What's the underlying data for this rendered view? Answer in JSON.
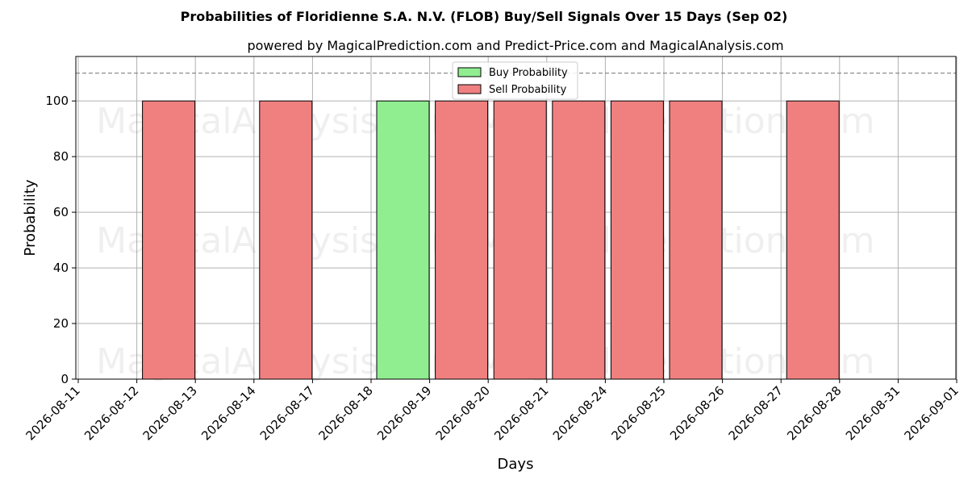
{
  "chart_data": {
    "type": "bar",
    "title": "Probabilities of Floridienne S.A. N.V. (FLOB) Buy/Sell Signals Over 15 Days (Sep 02)",
    "subtitle": "powered by MagicalPrediction.com and Predict-Price.com and MagicalAnalysis.com",
    "xlabel": "Days",
    "ylabel": "Probability",
    "categories": [
      "2026-08-11",
      "2026-08-12",
      "2026-08-13",
      "2026-08-14",
      "2026-08-17",
      "2026-08-18",
      "2026-08-19",
      "2026-08-20",
      "2026-08-21",
      "2026-08-24",
      "2026-08-25",
      "2026-08-26",
      "2026-08-27",
      "2026-08-28",
      "2026-08-31",
      "2026-09-01"
    ],
    "series": [
      {
        "name": "Buy Probability",
        "color": "#90ee90",
        "values": [
          0,
          0,
          0,
          0,
          0,
          100,
          0,
          0,
          0,
          0,
          0,
          0,
          0,
          0,
          0,
          0
        ]
      },
      {
        "name": "Sell Probability",
        "color": "#f08080",
        "values": [
          0,
          100,
          0,
          100,
          0,
          0,
          100,
          100,
          100,
          100,
          100,
          0,
          100,
          0,
          0,
          0
        ]
      }
    ],
    "ylim": [
      0,
      116
    ],
    "yticks": [
      0,
      20,
      40,
      60,
      80,
      100
    ],
    "threshold_line": 110,
    "grid": true,
    "legend_position": "top-center",
    "watermarks": [
      "MagicalAnalysis.com",
      "MagicalPrediction.com"
    ]
  }
}
